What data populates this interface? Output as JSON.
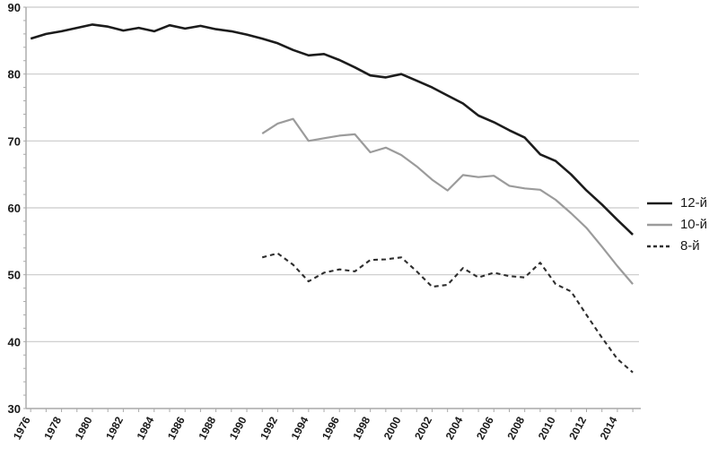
{
  "chart_data": {
    "type": "line",
    "title": "",
    "xlabel": "",
    "ylabel": "",
    "ylim": [
      30,
      90
    ],
    "ytick_step": 10,
    "yticks": [
      30,
      40,
      50,
      60,
      70,
      80,
      90
    ],
    "xlim": [
      1975.7,
      2015.4
    ],
    "xtick_label_years": [
      1976,
      1978,
      1980,
      1982,
      1984,
      1986,
      1988,
      1990,
      1992,
      1994,
      1996,
      1998,
      2000,
      2002,
      2004,
      2006,
      2008,
      2010,
      2012,
      2014
    ],
    "grid": "horizontal",
    "grid_color": "#c9c9c9",
    "axis_color": "#a9a9a9",
    "legend_position": "right",
    "series": [
      {
        "name": "12-й",
        "color": "#1c1c1c",
        "dash": "none",
        "width": 2.6,
        "x_start": 1976,
        "x": [
          1976,
          1977,
          1978,
          1979,
          1980,
          1981,
          1982,
          1983,
          1984,
          1985,
          1986,
          1987,
          1988,
          1989,
          1990,
          1991,
          1992,
          1993,
          1994,
          1995,
          1996,
          1997,
          1998,
          1999,
          2000,
          2001,
          2002,
          2003,
          2004,
          2005,
          2006,
          2007,
          2008,
          2009,
          2010,
          2011,
          2012,
          2013,
          2014,
          2015
        ],
        "values": [
          85.3,
          86.0,
          86.4,
          86.9,
          87.4,
          87.1,
          86.5,
          86.9,
          86.4,
          87.3,
          86.8,
          87.2,
          86.7,
          86.4,
          85.9,
          85.3,
          84.6,
          83.6,
          82.8,
          83.0,
          82.1,
          81.0,
          79.8,
          79.5,
          80.0,
          79.0,
          78.0,
          76.8,
          75.6,
          73.8,
          72.8,
          71.6,
          70.5,
          68.0,
          67.0,
          65.0,
          62.6,
          60.5,
          58.2,
          56.0
        ]
      },
      {
        "name": "10-й",
        "color": "#9b9b9b",
        "dash": "none",
        "width": 2.2,
        "x_start": 1991,
        "x": [
          1991,
          1992,
          1993,
          1994,
          1995,
          1996,
          1997,
          1998,
          1999,
          2000,
          2001,
          2002,
          2003,
          2004,
          2005,
          2006,
          2007,
          2008,
          2009,
          2010,
          2011,
          2012,
          2013,
          2014,
          2015
        ],
        "values": [
          71.1,
          72.6,
          73.3,
          70.0,
          70.4,
          70.8,
          71.0,
          68.3,
          69.0,
          67.9,
          66.2,
          64.2,
          62.6,
          64.9,
          64.6,
          64.8,
          63.3,
          62.9,
          62.7,
          61.2,
          59.2,
          57.0,
          54.2,
          51.3,
          48.6
        ]
      },
      {
        "name": "8-й",
        "color": "#2e2e2e",
        "dash": "5,4",
        "width": 2.1,
        "x_start": 1991,
        "x": [
          1991,
          1992,
          1993,
          1994,
          1995,
          1996,
          1997,
          1998,
          1999,
          2000,
          2001,
          2002,
          2003,
          2004,
          2005,
          2006,
          2007,
          2008,
          2009,
          2010,
          2011,
          2012,
          2013,
          2014,
          2015
        ],
        "values": [
          52.6,
          53.2,
          51.5,
          49.0,
          50.3,
          50.8,
          50.5,
          52.2,
          52.3,
          52.6,
          50.5,
          48.2,
          48.5,
          51.0,
          49.6,
          50.3,
          49.8,
          49.6,
          51.8,
          48.6,
          47.5,
          44.0,
          40.6,
          37.4,
          35.4
        ]
      }
    ]
  },
  "legend": {
    "items": [
      {
        "label": "12-й"
      },
      {
        "label": "10-й"
      },
      {
        "label": "8-й"
      }
    ]
  }
}
